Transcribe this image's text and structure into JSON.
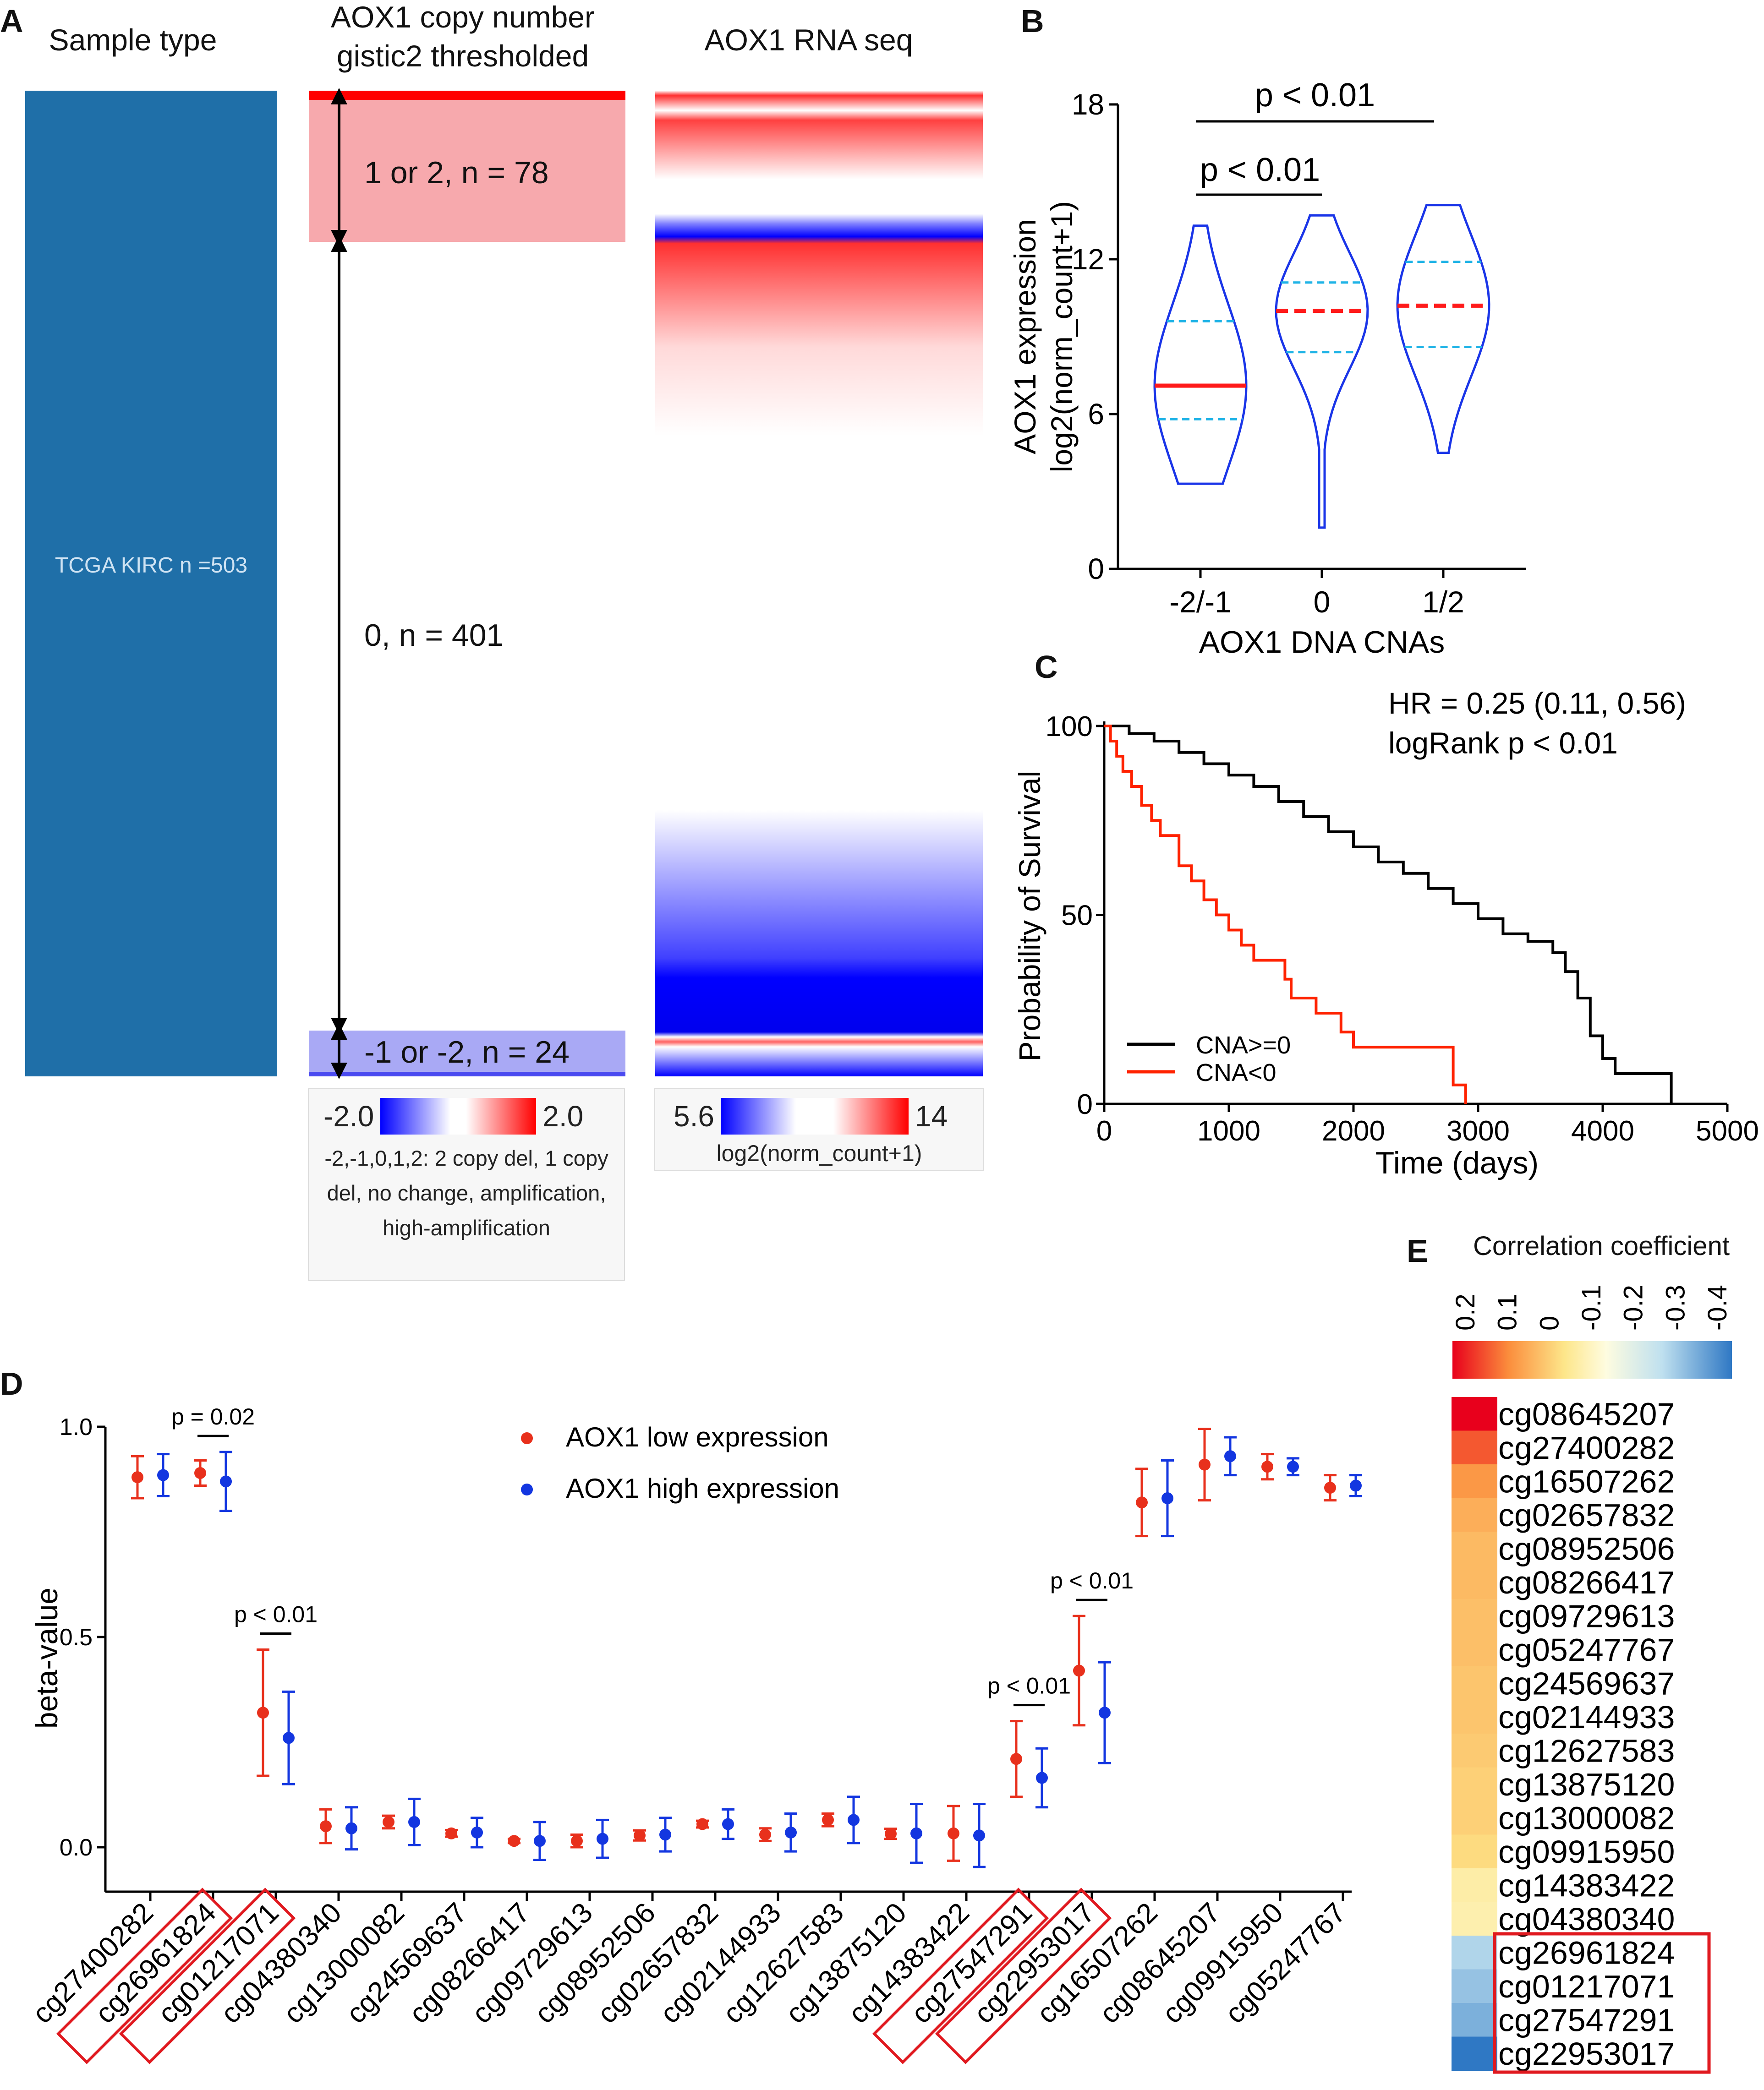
{
  "panel_labels": [
    "A",
    "B",
    "C",
    "D",
    "E"
  ],
  "panel_a": {
    "col1_title": "Sample type",
    "col2_title": [
      "AOX1 copy number",
      "gistic2 thresholded"
    ],
    "col3_title": "AOX1 RNA seq",
    "sample_label": "TCGA KIRC n =503",
    "group_amp": "1 or 2, n = 78",
    "group_zero": "0, n = 401",
    "group_del": "-1 or -2, n = 24",
    "cn_scale_min": "-2.0",
    "cn_scale_max": "2.0",
    "cn_note": "-2,-1,0,1,2: 2 copy del, 1 copy del, no change, amplification, high-amplification",
    "rna_scale_min": "5.6",
    "rna_scale_max": "14",
    "rna_scale_label": "log2(norm_count+1)",
    "colors": {
      "sample": "#1f6fa8",
      "amp_light": "#f7a9ad",
      "amp_dark": "#ff0000",
      "del": "#a9a9f5",
      "blue": "#0000ff",
      "red": "#ff0000"
    }
  },
  "chart_data": [
    {
      "id": "B",
      "type": "violin",
      "ylabel": [
        "AOX1 expression",
        "log2(norm_count+1)"
      ],
      "xlabel": "AOX1 DNA CNAs",
      "categories": [
        "-2/-1",
        "0",
        "1/2"
      ],
      "ylim": [
        0,
        18
      ],
      "yticks": [
        "0",
        "6",
        "12",
        "18"
      ],
      "median": [
        7.1,
        10.0,
        10.2
      ],
      "q1": [
        5.8,
        8.4,
        8.6
      ],
      "q3": [
        9.6,
        11.1,
        11.9
      ],
      "min": [
        3.3,
        1.6,
        4.5
      ],
      "max": [
        13.3,
        13.7,
        14.1
      ],
      "comparisons": [
        {
          "pair": [
            "-2/-1",
            "0"
          ],
          "label": "p < 0.01"
        },
        {
          "pair": [
            "-2/-1",
            "1/2"
          ],
          "label": "p < 0.01"
        }
      ]
    },
    {
      "id": "C",
      "type": "line",
      "ylabel": "Probability of Survival",
      "xlabel": "Time (days)",
      "xlim": [
        0,
        5000
      ],
      "ylim": [
        0,
        100
      ],
      "xticks": [
        "0",
        "1000",
        "2000",
        "3000",
        "4000",
        "5000"
      ],
      "yticks": [
        "0",
        "50",
        "100"
      ],
      "annotation": [
        "HR = 0.25 (0.11, 0.56)",
        "logRank p < 0.01"
      ],
      "series": [
        {
          "name": "CNA>=0",
          "color": "#000000",
          "x": [
            0,
            200,
            400,
            600,
            800,
            1000,
            1200,
            1400,
            1600,
            1800,
            2000,
            2200,
            2400,
            2600,
            2800,
            3000,
            3200,
            3400,
            3600,
            3700,
            3800,
            3900,
            4000,
            4100,
            4300,
            4550
          ],
          "y": [
            100,
            98,
            96,
            93,
            90,
            87,
            84,
            80,
            76,
            72,
            68,
            64,
            61,
            57,
            53,
            49,
            45,
            43,
            40,
            35,
            28,
            18,
            12,
            8,
            8,
            0
          ]
        },
        {
          "name": "CNA<0",
          "color": "#ff2200",
          "x": [
            0,
            50,
            100,
            150,
            220,
            300,
            380,
            450,
            600,
            700,
            800,
            900,
            1000,
            1100,
            1200,
            1450,
            1500,
            1700,
            1900,
            2000,
            2800,
            2900
          ],
          "y": [
            100,
            96,
            92,
            88,
            84,
            79,
            75,
            71,
            63,
            59,
            54,
            50,
            46,
            42,
            38,
            33,
            28,
            24,
            19,
            15,
            5,
            0
          ]
        }
      ]
    },
    {
      "id": "D",
      "type": "scatter",
      "ylabel": "beta-value",
      "ylim": [
        0,
        1.0
      ],
      "yticks": [
        "0.0",
        "0.5",
        "1.0"
      ],
      "categories": [
        "cg27400282",
        "cg26961824",
        "cg01217071",
        "cg04380340",
        "cg13000082",
        "cg24569637",
        "cg08266417",
        "cg09729613",
        "cg08952506",
        "cg02657832",
        "cg02144933",
        "cg12627583",
        "cg13875120",
        "cg14383422",
        "cg27547291",
        "cg22953017",
        "cg16507262",
        "cg08645207",
        "cg09915950",
        "cg05247767"
      ],
      "boxed": [
        "cg26961824",
        "cg01217071",
        "cg27547291",
        "cg22953017"
      ],
      "series": [
        {
          "name": "AOX1 low expression",
          "color": "#e8301c",
          "values": [
            0.88,
            0.89,
            0.32,
            0.05,
            0.06,
            0.033,
            0.015,
            0.015,
            0.028,
            0.055,
            0.03,
            0.065,
            0.032,
            0.033,
            0.21,
            0.42,
            0.82,
            0.91,
            0.905,
            0.855
          ],
          "err": [
            0.05,
            0.03,
            0.15,
            0.04,
            0.015,
            0.008,
            0.005,
            0.015,
            0.012,
            0.008,
            0.015,
            0.015,
            0.012,
            0.065,
            0.09,
            0.13,
            0.08,
            0.085,
            0.03,
            0.03
          ]
        },
        {
          "name": "AOX1 high expression",
          "color": "#1336e0",
          "values": [
            0.885,
            0.87,
            0.26,
            0.045,
            0.06,
            0.035,
            0.015,
            0.02,
            0.03,
            0.055,
            0.035,
            0.065,
            0.033,
            0.028,
            0.165,
            0.32,
            0.83,
            0.93,
            0.905,
            0.86
          ],
          "err": [
            0.05,
            0.07,
            0.11,
            0.05,
            0.055,
            0.035,
            0.045,
            0.045,
            0.04,
            0.035,
            0.045,
            0.055,
            0.07,
            0.075,
            0.07,
            0.12,
            0.09,
            0.045,
            0.02,
            0.025
          ]
        }
      ],
      "comparisons": [
        {
          "category": "cg26961824",
          "label": "p = 0.02"
        },
        {
          "category": "cg01217071",
          "label": "p < 0.01"
        },
        {
          "category": "cg27547291",
          "label": "p < 0.01"
        },
        {
          "category": "cg22953017",
          "label": "p < 0.01"
        }
      ]
    },
    {
      "id": "E",
      "type": "heatmap",
      "title": "Correlation coefficient",
      "scale_ticks": [
        "0.2",
        "0.1",
        "0",
        "-0.1",
        "-0.2",
        "-0.3",
        "-0.4"
      ],
      "rows": [
        "cg08645207",
        "cg27400282",
        "cg16507262",
        "cg02657832",
        "cg08952506",
        "cg08266417",
        "cg09729613",
        "cg05247767",
        "cg24569637",
        "cg02144933",
        "cg12627583",
        "cg13875120",
        "cg13000082",
        "cg09915950",
        "cg14383422",
        "cg04380340",
        "cg26961824",
        "cg01217071",
        "cg27547291",
        "cg22953017"
      ],
      "values": [
        0.2,
        0.15,
        0.11,
        0.09,
        0.08,
        0.08,
        0.075,
        0.075,
        0.07,
        0.07,
        0.065,
        0.06,
        0.06,
        0.05,
        0.02,
        0.015,
        -0.15,
        -0.2,
        -0.25,
        -0.4
      ],
      "boxed": [
        "cg26961824",
        "cg01217071",
        "cg27547291",
        "cg22953017"
      ]
    }
  ]
}
